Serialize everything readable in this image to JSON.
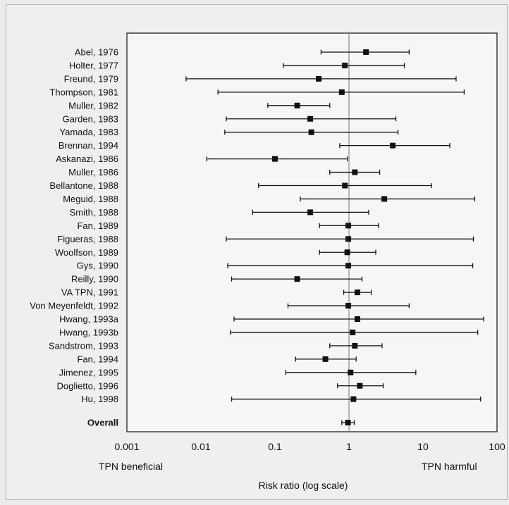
{
  "chart_data": {
    "type": "forest",
    "scale": "log",
    "xlim": [
      0.001,
      100
    ],
    "x_ticks": [
      "0.001",
      "0.01",
      "0.1",
      "1",
      "10",
      "100"
    ],
    "xlabel": "Risk ratio (log scale)",
    "left_annotation": "TPN beneficial",
    "right_annotation": "TPN harmful",
    "reference_line": 1,
    "studies": [
      {
        "label": "Abel, 1976",
        "rr": 1.7,
        "lo": 0.42,
        "hi": 6.5
      },
      {
        "label": "Holter, 1977",
        "rr": 0.88,
        "lo": 0.13,
        "hi": 5.6
      },
      {
        "label": "Freund, 1979",
        "rr": 0.39,
        "lo": 0.0063,
        "hi": 28
      },
      {
        "label": "Thompson, 1981",
        "rr": 0.8,
        "lo": 0.017,
        "hi": 36
      },
      {
        "label": "Muller, 1982",
        "rr": 0.2,
        "lo": 0.08,
        "hi": 0.55
      },
      {
        "label": "Garden, 1983",
        "rr": 0.3,
        "lo": 0.022,
        "hi": 4.3
      },
      {
        "label": "Yamada, 1983",
        "rr": 0.31,
        "lo": 0.021,
        "hi": 4.6
      },
      {
        "label": "Brennan, 1994",
        "rr": 3.9,
        "lo": 0.75,
        "hi": 23
      },
      {
        "label": "Askanazi, 1986",
        "rr": 0.1,
        "lo": 0.012,
        "hi": 0.95
      },
      {
        "label": "Muller, 1986",
        "rr": 1.2,
        "lo": 0.55,
        "hi": 2.6
      },
      {
        "label": "Bellantone, 1988",
        "rr": 0.88,
        "lo": 0.06,
        "hi": 13
      },
      {
        "label": "Meguid, 1988",
        "rr": 3.0,
        "lo": 0.22,
        "hi": 50
      },
      {
        "label": "Smith, 1988",
        "rr": 0.3,
        "lo": 0.05,
        "hi": 1.85
      },
      {
        "label": "Fan, 1989",
        "rr": 0.98,
        "lo": 0.4,
        "hi": 2.5
      },
      {
        "label": "Figueras, 1988",
        "rr": 0.98,
        "lo": 0.022,
        "hi": 48
      },
      {
        "label": "Woolfson, 1989",
        "rr": 0.95,
        "lo": 0.4,
        "hi": 2.3
      },
      {
        "label": "Gys, 1990",
        "rr": 0.98,
        "lo": 0.023,
        "hi": 47
      },
      {
        "label": "Reilly, 1990",
        "rr": 0.2,
        "lo": 0.026,
        "hi": 1.5
      },
      {
        "label": "VA TPN, 1991",
        "rr": 1.3,
        "lo": 0.85,
        "hi": 2.0
      },
      {
        "label": "Von Meyenfeldt, 1992",
        "rr": 0.98,
        "lo": 0.15,
        "hi": 6.5
      },
      {
        "label": "Hwang, 1993a",
        "rr": 1.3,
        "lo": 0.028,
        "hi": 66
      },
      {
        "label": "Hwang, 1993b",
        "rr": 1.12,
        "lo": 0.025,
        "hi": 55
      },
      {
        "label": "Sandstrom, 1993",
        "rr": 1.2,
        "lo": 0.55,
        "hi": 2.8
      },
      {
        "label": "Fan, 1994",
        "rr": 0.48,
        "lo": 0.19,
        "hi": 1.25
      },
      {
        "label": "Jimenez, 1995",
        "rr": 1.05,
        "lo": 0.14,
        "hi": 8.0
      },
      {
        "label": "Doglietto, 1996",
        "rr": 1.4,
        "lo": 0.7,
        "hi": 2.9
      },
      {
        "label": "Hu, 1998",
        "rr": 1.15,
        "lo": 0.026,
        "hi": 60
      }
    ],
    "overall": {
      "label": "Overall",
      "rr": 0.97,
      "lo": 0.8,
      "hi": 1.18
    }
  }
}
